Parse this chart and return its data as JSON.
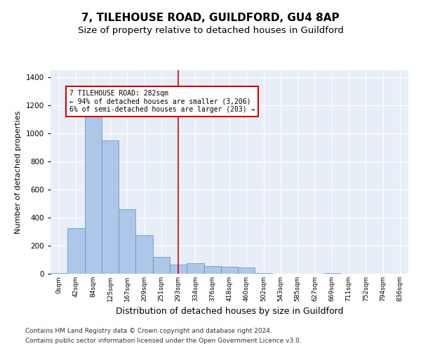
{
  "title1": "7, TILEHOUSE ROAD, GUILDFORD, GU4 8AP",
  "title2": "Size of property relative to detached houses in Guildford",
  "xlabel": "Distribution of detached houses by size in Guildford",
  "ylabel": "Number of detached properties",
  "footnote1": "Contains HM Land Registry data © Crown copyright and database right 2024.",
  "footnote2": "Contains public sector information licensed under the Open Government Licence v3.0.",
  "bar_labels": [
    "0sqm",
    "42sqm",
    "84sqm",
    "125sqm",
    "167sqm",
    "209sqm",
    "251sqm",
    "293sqm",
    "334sqm",
    "376sqm",
    "418sqm",
    "460sqm",
    "502sqm",
    "543sqm",
    "585sqm",
    "627sqm",
    "669sqm",
    "711sqm",
    "752sqm",
    "794sqm",
    "836sqm"
  ],
  "bar_values": [
    5,
    325,
    1120,
    950,
    460,
    275,
    120,
    65,
    75,
    55,
    50,
    45,
    5,
    0,
    0,
    0,
    5,
    0,
    0,
    0,
    0
  ],
  "bar_color": "#aec6e8",
  "bar_edge_color": "#5a8fc0",
  "background_color": "#e8eef8",
  "grid_color": "#ffffff",
  "vline_x_idx": 7,
  "vline_color": "#cc0000",
  "annotation_text": "7 TILEHOUSE ROAD: 282sqm\n← 94% of detached houses are smaller (3,206)\n6% of semi-detached houses are larger (203) →",
  "annotation_box_color": "#cc0000",
  "ylim": [
    0,
    1450
  ],
  "yticks": [
    0,
    200,
    400,
    600,
    800,
    1000,
    1200,
    1400
  ],
  "title1_fontsize": 11,
  "title2_fontsize": 9.5,
  "xlabel_fontsize": 9,
  "ylabel_fontsize": 8,
  "footnote_fontsize": 6.5
}
